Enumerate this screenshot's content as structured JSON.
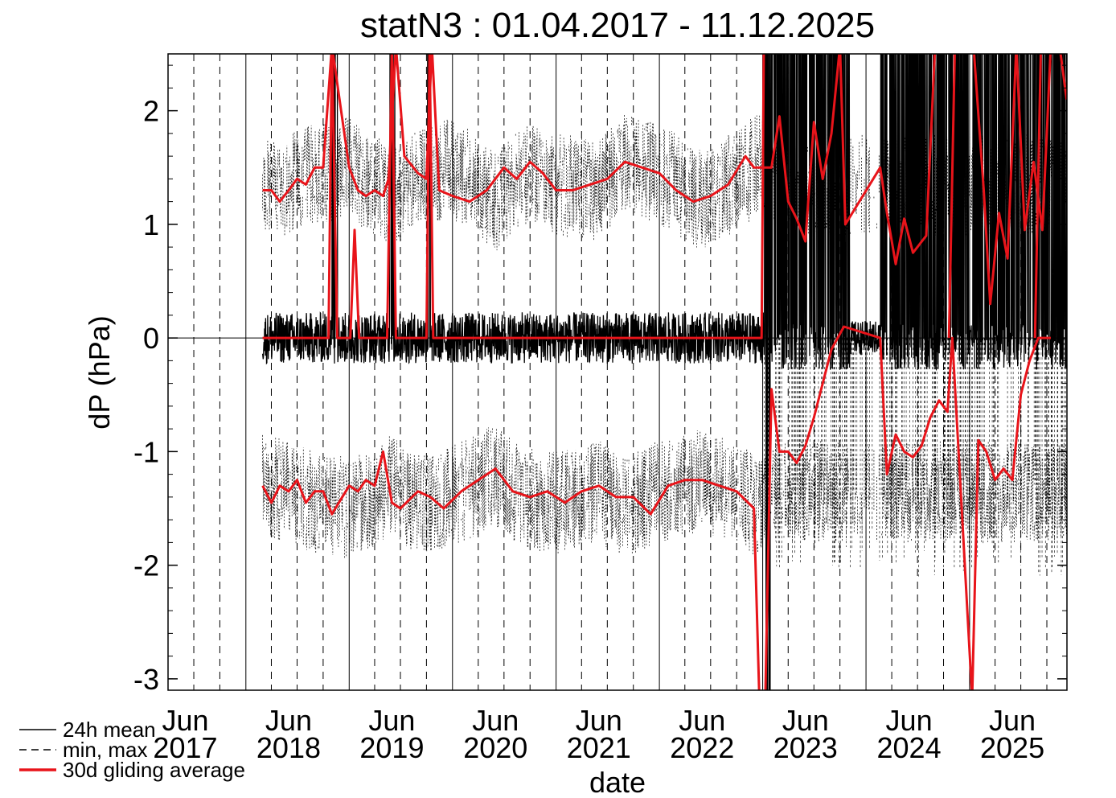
{
  "chart_data": {
    "type": "line",
    "title": "statN3 : 01.04.2017 - 11.12.2025",
    "xlabel": "date",
    "ylabel": "dP (hPa)",
    "ylim": [
      -3.1,
      2.5
    ],
    "xlim": [
      "2017-04-01",
      "2025-12-11"
    ],
    "y_ticks": [
      -3,
      -2,
      -1,
      0,
      1,
      2
    ],
    "y_tick_labels": [
      "-3",
      "-2",
      "-1",
      "0",
      "1",
      "2"
    ],
    "x_ticks": [
      {
        "month": "Jun",
        "year": "2017",
        "date": "2017-06-01"
      },
      {
        "month": "Jun",
        "year": "2018",
        "date": "2018-06-01"
      },
      {
        "month": "Jun",
        "year": "2019",
        "date": "2019-06-01"
      },
      {
        "month": "Jun",
        "year": "2020",
        "date": "2020-06-01"
      },
      {
        "month": "Jun",
        "year": "2021",
        "date": "2021-06-01"
      },
      {
        "month": "Jun",
        "year": "2022",
        "date": "2022-06-01"
      },
      {
        "month": "Jun",
        "year": "2023",
        "date": "2023-06-01"
      },
      {
        "month": "Jun",
        "year": "2024",
        "date": "2024-06-01"
      },
      {
        "month": "Jun",
        "year": "2025",
        "date": "2025-06-01"
      }
    ],
    "vertical_lines": [
      {
        "date": "2017-07-01",
        "style": "dashed"
      },
      {
        "date": "2017-10-01",
        "style": "dashed"
      },
      {
        "date": "2018-01-01",
        "style": "solid"
      },
      {
        "date": "2018-04-01",
        "style": "dashed"
      },
      {
        "date": "2018-07-01",
        "style": "dashed"
      },
      {
        "date": "2018-10-01",
        "style": "dashed"
      },
      {
        "date": "2019-01-01",
        "style": "solid"
      },
      {
        "date": "2019-04-01",
        "style": "dashed"
      },
      {
        "date": "2019-07-01",
        "style": "dashed"
      },
      {
        "date": "2019-10-01",
        "style": "dashed"
      },
      {
        "date": "2020-01-01",
        "style": "solid"
      },
      {
        "date": "2020-04-01",
        "style": "dashed"
      },
      {
        "date": "2020-07-01",
        "style": "dashed"
      },
      {
        "date": "2020-10-01",
        "style": "dashed"
      },
      {
        "date": "2021-01-01",
        "style": "solid"
      },
      {
        "date": "2021-04-01",
        "style": "dashed"
      },
      {
        "date": "2021-07-01",
        "style": "dashed"
      },
      {
        "date": "2021-10-01",
        "style": "dashed"
      },
      {
        "date": "2022-01-01",
        "style": "solid"
      },
      {
        "date": "2022-04-01",
        "style": "dashed"
      },
      {
        "date": "2022-07-01",
        "style": "dashed"
      },
      {
        "date": "2022-10-01",
        "style": "dashed"
      },
      {
        "date": "2023-01-01",
        "style": "solid"
      },
      {
        "date": "2023-04-01",
        "style": "dashed"
      },
      {
        "date": "2023-07-01",
        "style": "dashed"
      },
      {
        "date": "2023-10-01",
        "style": "dashed"
      },
      {
        "date": "2024-01-01",
        "style": "solid"
      },
      {
        "date": "2024-04-01",
        "style": "dashed"
      },
      {
        "date": "2024-07-01",
        "style": "dashed"
      },
      {
        "date": "2024-10-01",
        "style": "dashed"
      },
      {
        "date": "2025-01-01",
        "style": "solid"
      },
      {
        "date": "2025-04-01",
        "style": "dashed"
      },
      {
        "date": "2025-07-01",
        "style": "dashed"
      },
      {
        "date": "2025-10-01",
        "style": "dashed"
      }
    ],
    "data_start": "2018-03-01",
    "grid": false,
    "legend_position": "bottom-left",
    "series": [
      {
        "name": "24h mean",
        "style": "solid",
        "color": "#000000",
        "description_points": {
          "x": [
            "2018-03-01",
            "2018-11-01",
            "2018-11-20",
            "2019-01-10",
            "2019-01-25",
            "2019-05-20",
            "2019-06-05",
            "2019-06-20",
            "2019-10-05",
            "2019-10-20",
            "2020-01-01",
            "2021-01-01",
            "2022-01-01",
            "2022-12-31",
            "2023-01-10",
            "2023-06-01",
            "2023-10-31",
            "2024-02-20",
            "2024-06-01",
            "2024-10-31",
            "2025-01-10",
            "2025-06-01",
            "2025-12-10"
          ],
          "y": [
            0.0,
            0.05,
            2.5,
            0.1,
            0.95,
            0.05,
            2.5,
            0.05,
            2.5,
            0.05,
            0.0,
            0.0,
            0.0,
            0.0,
            2.5,
            2.5,
            2.5,
            2.5,
            2.5,
            2.5,
            2.5,
            2.5,
            2.5
          ]
        }
      },
      {
        "name": "min, max",
        "style": "dashed",
        "color": "#000000",
        "max_envelope": {
          "x": [
            "2018-03-01",
            "2018-06-01",
            "2018-09-01",
            "2019-01-01",
            "2019-06-01",
            "2019-09-01",
            "2020-01-01",
            "2020-06-01",
            "2020-09-01",
            "2021-01-01",
            "2021-06-01",
            "2021-09-01",
            "2022-01-01",
            "2022-06-01",
            "2022-09-01",
            "2022-12-31"
          ],
          "y": [
            1.3,
            1.35,
            1.45,
            1.5,
            1.25,
            1.4,
            1.5,
            1.2,
            1.45,
            1.35,
            1.3,
            1.55,
            1.45,
            1.2,
            1.35,
            1.55
          ]
        },
        "min_envelope": {
          "x": [
            "2018-03-01",
            "2018-06-01",
            "2018-09-01",
            "2019-01-01",
            "2019-06-01",
            "2019-09-01",
            "2020-01-01",
            "2020-06-01",
            "2020-09-01",
            "2021-01-01",
            "2021-06-01",
            "2021-09-01",
            "2022-01-01",
            "2022-06-01",
            "2022-09-01",
            "2022-12-31"
          ],
          "y": [
            -1.3,
            -1.35,
            -1.45,
            -1.5,
            -1.3,
            -1.45,
            -1.4,
            -1.2,
            -1.4,
            -1.45,
            -1.35,
            -1.5,
            -1.35,
            -1.25,
            -1.35,
            -1.5
          ]
        }
      },
      {
        "name": "30d gliding average",
        "style": "solid",
        "color": "#e8141a",
        "upper": {
          "x": [
            "2018-03-01",
            "2018-04-01",
            "2018-05-01",
            "2018-06-01",
            "2018-07-01",
            "2018-08-01",
            "2018-09-01",
            "2018-10-01",
            "2018-11-01",
            "2019-01-01",
            "2019-02-01",
            "2019-03-01",
            "2019-04-01",
            "2019-05-01",
            "2019-05-20",
            "2019-06-15",
            "2019-07-15",
            "2019-09-01",
            "2019-10-01",
            "2019-10-20",
            "2019-11-15",
            "2020-01-01",
            "2020-03-01",
            "2020-05-01",
            "2020-07-01",
            "2020-08-15",
            "2020-10-01",
            "2020-11-15",
            "2021-01-01",
            "2021-03-01",
            "2021-05-01",
            "2021-07-01",
            "2021-09-01",
            "2021-11-01",
            "2022-01-01",
            "2022-03-01",
            "2022-05-01",
            "2022-07-01",
            "2022-09-01",
            "2022-11-01",
            "2022-12-01",
            "2022-12-31",
            "2023-02-01",
            "2023-03-01",
            "2023-04-01",
            "2023-05-01",
            "2023-06-01",
            "2023-07-01",
            "2023-08-01",
            "2023-09-01",
            "2023-10-01",
            "2023-10-20",
            "2024-02-20",
            "2024-03-15",
            "2024-04-15",
            "2024-05-15",
            "2024-06-15",
            "2024-08-01",
            "2024-09-01",
            "2024-10-01",
            "2024-10-25",
            "2025-01-15",
            "2025-02-20",
            "2025-03-15",
            "2025-04-15",
            "2025-05-15",
            "2025-06-15",
            "2025-07-15",
            "2025-08-15",
            "2025-09-15",
            "2025-10-15",
            "2025-11-15",
            "2025-12-10"
          ],
          "y": [
            1.3,
            1.3,
            1.2,
            1.3,
            1.4,
            1.35,
            1.5,
            1.5,
            2.5,
            1.5,
            1.3,
            1.25,
            1.3,
            1.25,
            1.4,
            2.5,
            1.6,
            1.45,
            1.4,
            2.5,
            1.3,
            1.25,
            1.2,
            1.3,
            1.5,
            1.4,
            1.55,
            1.45,
            1.3,
            1.3,
            1.35,
            1.4,
            1.55,
            1.5,
            1.45,
            1.3,
            1.2,
            1.25,
            1.35,
            1.6,
            1.5,
            1.5,
            1.5,
            1.95,
            1.2,
            1.05,
            0.85,
            1.9,
            1.4,
            1.8,
            2.5,
            1.0,
            1.5,
            1.1,
            0.65,
            1.05,
            0.75,
            0.9,
            2.5,
            2.5,
            2.5,
            2.5,
            1.3,
            0.3,
            1.1,
            0.7,
            2.5,
            0.95,
            1.55,
            0.95,
            2.5,
            2.5,
            2.1
          ]
        },
        "lower": {
          "x": [
            "2018-03-01",
            "2018-04-01",
            "2018-05-01",
            "2018-06-01",
            "2018-07-01",
            "2018-08-01",
            "2018-09-01",
            "2018-10-01",
            "2018-11-01",
            "2019-01-01",
            "2019-02-01",
            "2019-03-01",
            "2019-04-01",
            "2019-05-01",
            "2019-06-01",
            "2019-07-01",
            "2019-09-01",
            "2019-10-15",
            "2019-12-01",
            "2020-02-01",
            "2020-04-01",
            "2020-06-01",
            "2020-08-01",
            "2020-10-01",
            "2020-12-01",
            "2021-02-01",
            "2021-04-01",
            "2021-06-01",
            "2021-08-01",
            "2021-10-01",
            "2021-12-01",
            "2022-02-01",
            "2022-04-01",
            "2022-06-01",
            "2022-08-01",
            "2022-10-01",
            "2022-12-01",
            "2022-12-20",
            "2023-01-10",
            "2023-02-01",
            "2023-03-01",
            "2023-04-01",
            "2023-05-01",
            "2023-06-01",
            "2023-07-01",
            "2023-08-01",
            "2023-09-01",
            "2023-10-15",
            "2024-02-20",
            "2024-03-15",
            "2024-04-15",
            "2024-05-15",
            "2024-06-15",
            "2024-07-15",
            "2024-08-15",
            "2024-09-15",
            "2024-10-15",
            "2024-11-01",
            "2025-01-10",
            "2025-02-01",
            "2025-03-01",
            "2025-04-01",
            "2025-05-01",
            "2025-06-01",
            "2025-07-01",
            "2025-08-01",
            "2025-09-01",
            "2025-10-15"
          ],
          "y": [
            -1.3,
            -1.45,
            -1.3,
            -1.35,
            -1.25,
            -1.45,
            -1.35,
            -1.35,
            -1.55,
            -1.3,
            -1.35,
            -1.25,
            -1.3,
            -1.0,
            -1.45,
            -1.5,
            -1.35,
            -1.4,
            -1.5,
            -1.35,
            -1.25,
            -1.15,
            -1.35,
            -1.4,
            -1.35,
            -1.45,
            -1.35,
            -1.3,
            -1.4,
            -1.4,
            -1.55,
            -1.3,
            -1.25,
            -1.25,
            -1.3,
            -1.35,
            -1.5,
            -3.1,
            -3.1,
            -0.45,
            -1.0,
            -1.0,
            -1.1,
            -0.95,
            -0.7,
            -0.4,
            -0.1,
            0.1,
            0.0,
            -1.2,
            -0.85,
            -1.0,
            -1.05,
            -0.95,
            -0.7,
            -0.55,
            -0.65,
            0.0,
            -3.1,
            -0.9,
            -1.0,
            -1.25,
            -1.15,
            -1.25,
            -0.5,
            -0.2,
            0.0,
            0.0
          ]
        }
      }
    ],
    "legend": [
      {
        "label": "24h mean",
        "style": "solid",
        "color": "#000000"
      },
      {
        "label": "min, max",
        "style": "dashed",
        "color": "#000000"
      },
      {
        "label": "30d gliding average",
        "style": "solid",
        "color": "#e8141a"
      }
    ]
  }
}
